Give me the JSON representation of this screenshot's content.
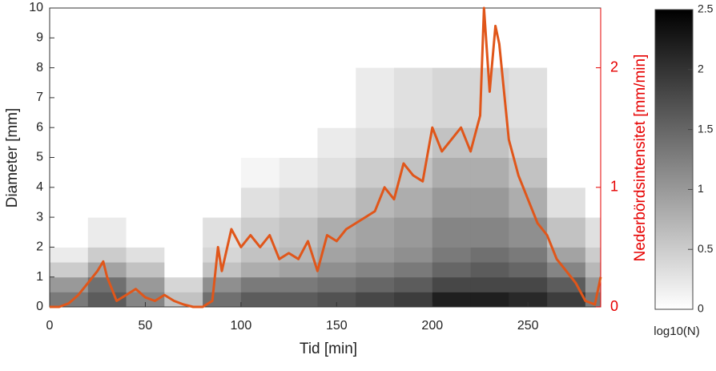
{
  "chart_data": {
    "type": "contour",
    "xlabel": "Tid [min]",
    "ylabel": "Diameter [mm]",
    "y2label": "Nederbördsintensitet [mm/min]",
    "xlim": [
      0,
      288
    ],
    "xticks": [
      0,
      50,
      100,
      150,
      200,
      250
    ],
    "ylim": [
      0,
      10
    ],
    "yticks": [
      0,
      1,
      2,
      3,
      4,
      5,
      6,
      7,
      8,
      9,
      10
    ],
    "y2lim": [
      0,
      2.5
    ],
    "y2ticks": [
      0,
      1,
      2
    ],
    "y2color": "#e60000",
    "x_bins": [
      0,
      20,
      40,
      60,
      80,
      100,
      120,
      140,
      160,
      180,
      200,
      220,
      240,
      260,
      280,
      288
    ],
    "y_bins": [
      0,
      0.5,
      1,
      1.5,
      2,
      3,
      4,
      5,
      6,
      8
    ],
    "z": [
      [
        1.3,
        1.6,
        1.2,
        0.6,
        1.4,
        1.6,
        1.6,
        1.7,
        1.8,
        1.9,
        2.2,
        2.2,
        2.1,
        1.9,
        1.3
      ],
      [
        1.0,
        1.4,
        1.0,
        0.4,
        1.1,
        1.3,
        1.3,
        1.4,
        1.5,
        1.6,
        1.8,
        1.8,
        1.8,
        1.6,
        1.0
      ],
      [
        0.5,
        0.9,
        0.6,
        0,
        0.6,
        0.8,
        0.9,
        1.1,
        1.2,
        1.3,
        1.5,
        1.6,
        1.5,
        1.2,
        0.7
      ],
      [
        0.2,
        0.5,
        0.3,
        0,
        0.4,
        0.6,
        0.7,
        0.9,
        1.0,
        1.1,
        1.3,
        1.4,
        1.3,
        0.9,
        0.5
      ],
      [
        0,
        0.2,
        0,
        0,
        0.3,
        0.5,
        0.6,
        0.8,
        0.9,
        1.0,
        1.2,
        1.2,
        1.1,
        0.6,
        0.3
      ],
      [
        0,
        0,
        0,
        0,
        0,
        0.3,
        0.4,
        0.5,
        0.7,
        0.8,
        1.0,
        1.0,
        0.8,
        0.3,
        0
      ],
      [
        0,
        0,
        0,
        0,
        0,
        0.1,
        0.2,
        0.3,
        0.5,
        0.6,
        0.8,
        0.8,
        0.6,
        0,
        0
      ],
      [
        0,
        0,
        0,
        0,
        0,
        0,
        0,
        0.2,
        0.3,
        0.4,
        0.6,
        0.6,
        0.4,
        0,
        0
      ],
      [
        0,
        0,
        0,
        0,
        0,
        0,
        0,
        0,
        0.2,
        0.3,
        0.4,
        0.4,
        0.3,
        0,
        0
      ]
    ],
    "colorbar": {
      "label": "log10(N)",
      "lim": [
        0,
        2.5
      ],
      "ticks": [
        0,
        0.5,
        1,
        1.5,
        2,
        2.5
      ]
    },
    "series": [
      {
        "axis": "y2",
        "color": "#e0561a",
        "x": [
          0,
          5,
          10,
          15,
          20,
          25,
          28,
          30,
          35,
          40,
          45,
          50,
          55,
          60,
          65,
          70,
          75,
          80,
          85,
          88,
          90,
          95,
          100,
          105,
          110,
          115,
          120,
          125,
          130,
          135,
          140,
          145,
          150,
          155,
          160,
          165,
          170,
          175,
          180,
          185,
          190,
          195,
          200,
          205,
          210,
          215,
          220,
          225,
          227,
          230,
          233,
          235,
          240,
          245,
          250,
          255,
          260,
          265,
          270,
          275,
          280,
          285,
          288
        ],
        "values": [
          0,
          0,
          0.03,
          0.1,
          0.2,
          0.3,
          0.38,
          0.25,
          0.05,
          0.1,
          0.15,
          0.08,
          0.05,
          0.1,
          0.05,
          0.02,
          0,
          0,
          0.05,
          0.5,
          0.3,
          0.65,
          0.5,
          0.6,
          0.5,
          0.6,
          0.4,
          0.45,
          0.4,
          0.55,
          0.3,
          0.6,
          0.55,
          0.65,
          0.7,
          0.75,
          0.8,
          1.0,
          0.9,
          1.2,
          1.1,
          1.05,
          1.5,
          1.3,
          1.4,
          1.5,
          1.3,
          1.6,
          2.5,
          1.8,
          2.35,
          2.2,
          1.4,
          1.1,
          0.9,
          0.7,
          0.6,
          0.4,
          0.3,
          0.2,
          0.05,
          0.02,
          0.25
        ]
      }
    ]
  }
}
